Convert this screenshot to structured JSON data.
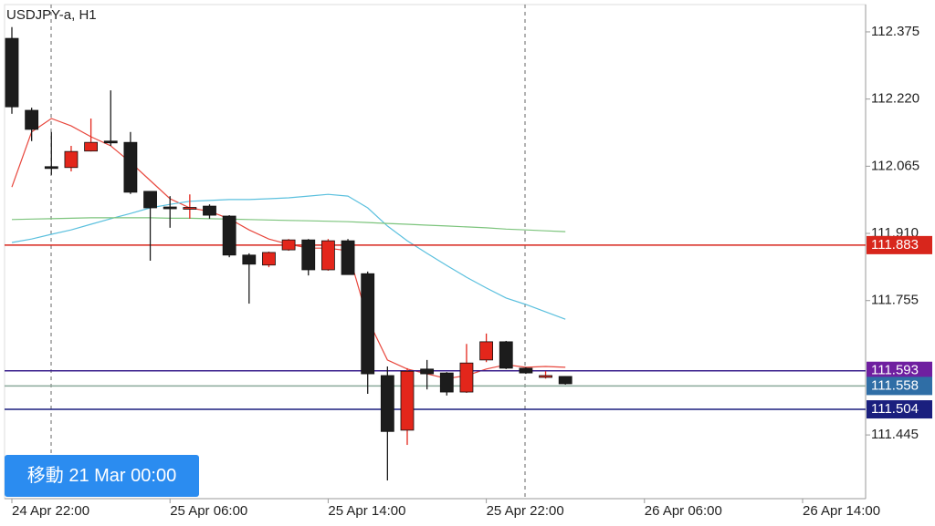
{
  "title": "USDJPY-a, H1",
  "scroll_button": "移動 21 Mar 00:00",
  "chart_data": {
    "type": "candlestick",
    "categories": [
      "24 Apr 22:00",
      null,
      null,
      null,
      null,
      null,
      null,
      null,
      "25 Apr 06:00",
      null,
      null,
      null,
      null,
      null,
      null,
      null,
      "25 Apr 14:00",
      null,
      null,
      null,
      null,
      null,
      null,
      null,
      "25 Apr 22:00",
      null,
      null,
      null,
      null,
      null,
      null,
      null,
      "26 Apr 06:00",
      null,
      null,
      null,
      null,
      null,
      null,
      null,
      "26 Apr 14:00"
    ],
    "open": [
      112.36,
      112.194,
      112.064,
      112.062,
      112.1,
      112.123,
      112.12,
      112.007,
      111.971,
      111.969,
      111.973,
      111.95,
      111.86,
      111.837,
      111.872,
      111.895,
      111.826,
      111.893,
      111.817,
      111.582,
      111.456,
      111.597,
      111.588,
      111.544,
      111.618,
      111.66,
      111.599,
      111.58,
      111.58,
      null,
      null,
      null,
      null,
      null,
      null,
      null,
      null,
      null,
      null,
      null,
      null
    ],
    "high": [
      112.386,
      112.2,
      112.144,
      112.112,
      112.175,
      112.24,
      112.144,
      112.007,
      111.996,
      112.0,
      111.977,
      111.952,
      111.864,
      111.868,
      111.897,
      111.897,
      111.897,
      111.897,
      111.822,
      111.603,
      111.599,
      111.618,
      111.59,
      111.655,
      111.679,
      111.662,
      111.601,
      111.592,
      111.58,
      null,
      null,
      null,
      null,
      null,
      null,
      null,
      null,
      null,
      null,
      null,
      null
    ],
    "low": [
      112.186,
      112.123,
      112.045,
      112.053,
      112.099,
      112.112,
      112.001,
      111.847,
      111.923,
      111.944,
      111.944,
      111.855,
      111.748,
      111.832,
      111.87,
      111.813,
      111.824,
      111.815,
      111.54,
      111.34,
      111.422,
      111.55,
      111.536,
      111.542,
      111.613,
      111.597,
      111.586,
      111.575,
      111.561,
      null,
      null,
      null,
      null,
      null,
      null,
      null,
      null,
      null,
      null,
      null,
      null
    ],
    "close": [
      112.202,
      112.15,
      112.062,
      112.099,
      112.12,
      112.12,
      112.005,
      111.969,
      111.968,
      111.97,
      111.952,
      111.86,
      111.839,
      111.866,
      111.895,
      111.826,
      111.893,
      111.815,
      111.586,
      111.453,
      111.592,
      111.586,
      111.544,
      111.611,
      111.66,
      111.599,
      111.588,
      111.582,
      111.563,
      null,
      null,
      null,
      null,
      null,
      null,
      null,
      null,
      null,
      null,
      null,
      null
    ],
    "up_color": "#e3261b",
    "down_color": "#1c1c1c",
    "moving_averages": [
      {
        "color": "#e8463c",
        "values": [
          112.017,
          112.144,
          112.175,
          112.158,
          112.133,
          112.112,
          112.074,
          112.032,
          111.99,
          111.969,
          111.961,
          111.944,
          111.918,
          111.897,
          111.885,
          111.876,
          111.876,
          111.87,
          111.712,
          111.618,
          111.597,
          111.586,
          111.575,
          111.582,
          111.597,
          111.607,
          111.601,
          111.603,
          111.601,
          null,
          null,
          null,
          null,
          null,
          null,
          null,
          null,
          null,
          null,
          null,
          null
        ]
      },
      {
        "color": "#5bc0de",
        "values": [
          111.889,
          111.897,
          111.908,
          111.918,
          111.931,
          111.944,
          111.956,
          111.969,
          111.977,
          111.984,
          111.986,
          111.988,
          111.988,
          111.99,
          111.992,
          111.996,
          112.0,
          111.996,
          111.969,
          111.927,
          111.893,
          111.864,
          111.836,
          111.809,
          111.784,
          111.761,
          111.746,
          111.729,
          111.712,
          null,
          null,
          null,
          null,
          null,
          null,
          null,
          null,
          null,
          null,
          null,
          null
        ]
      },
      {
        "color": "#7cc47c",
        "values": [
          111.942,
          111.943,
          111.944,
          111.945,
          111.946,
          111.946,
          111.946,
          111.946,
          111.945,
          111.945,
          111.944,
          111.943,
          111.942,
          111.941,
          111.94,
          111.939,
          111.938,
          111.937,
          111.935,
          111.933,
          111.931,
          111.929,
          111.927,
          111.925,
          111.923,
          111.92,
          111.918,
          111.916,
          111.914,
          null,
          null,
          null,
          null,
          null,
          null,
          null,
          null,
          null,
          null,
          null,
          null
        ]
      }
    ],
    "price_lines": [
      {
        "value": 111.883,
        "color": "#d8261c",
        "label_color": "#d8261c"
      },
      {
        "value": 111.593,
        "color": "#3a1f8c",
        "label_color": "#6f1fa0"
      },
      {
        "value": 111.558,
        "color": "#8aa89a",
        "label_color": "#2f6ea6"
      },
      {
        "value": 111.504,
        "color": "#1a1f7e",
        "label_color": "#1a1f7e"
      }
    ],
    "ylim": [
      111.298,
      112.438
    ],
    "yticks": [
      112.375,
      {
        "value": 112.22,
        "label": "112.220"
      },
      112.065,
      {
        "value": 111.91,
        "label": "111.910"
      },
      111.755,
      111.445
    ]
  }
}
